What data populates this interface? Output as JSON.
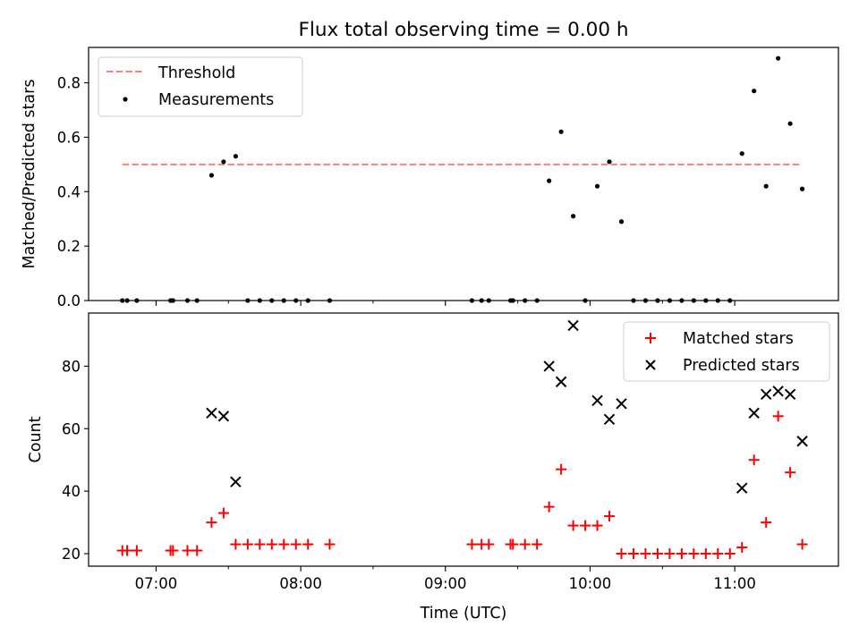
{
  "figure": {
    "title": "Flux total observing time = 0.00 h"
  },
  "chart_data": [
    {
      "type": "scatter",
      "title": "Flux total observing time = 0.00 h",
      "xlabel": "",
      "ylabel": "Matched/Predicted stars",
      "xlim": [
        "06:32",
        "11:43"
      ],
      "ylim": [
        0,
        0.93
      ],
      "yticks": [
        0.0,
        0.2,
        0.4,
        0.6,
        0.8
      ],
      "ytick_labels": [
        "0.0",
        "0.2",
        "0.4",
        "0.6",
        "0.8"
      ],
      "xticks": [
        "07:00",
        "08:00",
        "09:00",
        "10:00",
        "11:00"
      ],
      "minor_xticks": [
        "06:30",
        "07:30",
        "08:30",
        "09:30",
        "10:30"
      ],
      "legend": {
        "position": "upper-left",
        "entries": [
          "Threshold",
          "Measurements"
        ]
      },
      "grid": false,
      "threshold": {
        "name": "Threshold",
        "value": 0.5,
        "x_start": "06:46",
        "x_end": "11:27",
        "color": "#ff7f7f",
        "style": "dashed"
      },
      "series": [
        {
          "name": "Measurements",
          "color": "#000000",
          "marker": "dot",
          "points": [
            [
              "06:46",
              0.0
            ],
            [
              "06:48",
              0.0
            ],
            [
              "06:52",
              0.0
            ],
            [
              "07:06",
              0.0
            ],
            [
              "07:07",
              0.0
            ],
            [
              "07:13",
              0.0
            ],
            [
              "07:17",
              0.0
            ],
            [
              "07:23",
              0.46
            ],
            [
              "07:28",
              0.51
            ],
            [
              "07:33",
              0.53
            ],
            [
              "07:38",
              0.0
            ],
            [
              "07:43",
              0.0
            ],
            [
              "07:48",
              0.0
            ],
            [
              "07:53",
              0.0
            ],
            [
              "07:58",
              0.0
            ],
            [
              "08:03",
              0.0
            ],
            [
              "08:12",
              0.0
            ],
            [
              "09:11",
              0.0
            ],
            [
              "09:15",
              0.0
            ],
            [
              "09:18",
              0.0
            ],
            [
              "09:27",
              0.0
            ],
            [
              "09:28",
              0.0
            ],
            [
              "09:33",
              0.0
            ],
            [
              "09:38",
              0.0
            ],
            [
              "09:43",
              0.44
            ],
            [
              "09:48",
              0.62
            ],
            [
              "09:53",
              0.31
            ],
            [
              "09:58",
              0.0
            ],
            [
              "10:03",
              0.42
            ],
            [
              "10:08",
              0.51
            ],
            [
              "10:13",
              0.29
            ],
            [
              "10:18",
              0.0
            ],
            [
              "10:23",
              0.0
            ],
            [
              "10:28",
              0.0
            ],
            [
              "10:33",
              0.0
            ],
            [
              "10:38",
              0.0
            ],
            [
              "10:43",
              0.0
            ],
            [
              "10:48",
              0.0
            ],
            [
              "10:53",
              0.0
            ],
            [
              "10:58",
              0.0
            ],
            [
              "11:03",
              0.54
            ],
            [
              "11:08",
              0.77
            ],
            [
              "11:13",
              0.42
            ],
            [
              "11:18",
              0.89
            ],
            [
              "11:23",
              0.65
            ],
            [
              "11:28",
              0.41
            ]
          ]
        }
      ]
    },
    {
      "type": "scatter",
      "title": "",
      "xlabel": "Time (UTC)",
      "ylabel": "Count",
      "xlim": [
        "06:32",
        "11:43"
      ],
      "ylim": [
        16,
        97
      ],
      "yticks": [
        20,
        40,
        60,
        80
      ],
      "ytick_labels": [
        "20",
        "40",
        "60",
        "80"
      ],
      "xticks": [
        "07:00",
        "08:00",
        "09:00",
        "10:00",
        "11:00"
      ],
      "xtick_labels": [
        "07:00",
        "08:00",
        "09:00",
        "10:00",
        "11:00"
      ],
      "minor_xticks": [
        "06:30",
        "07:30",
        "08:30",
        "09:30",
        "10:30"
      ],
      "legend": {
        "position": "upper-right",
        "entries": [
          "Matched stars",
          "Predicted stars"
        ]
      },
      "grid": false,
      "series": [
        {
          "name": "Matched stars",
          "color": "#ff0000",
          "marker": "plus",
          "points": [
            [
              "06:46",
              21
            ],
            [
              "06:48",
              21
            ],
            [
              "06:52",
              21
            ],
            [
              "07:06",
              21
            ],
            [
              "07:07",
              21
            ],
            [
              "07:13",
              21
            ],
            [
              "07:17",
              21
            ],
            [
              "07:23",
              30
            ],
            [
              "07:28",
              33
            ],
            [
              "07:33",
              23
            ],
            [
              "07:38",
              23
            ],
            [
              "07:43",
              23
            ],
            [
              "07:48",
              23
            ],
            [
              "07:53",
              23
            ],
            [
              "07:58",
              23
            ],
            [
              "08:03",
              23
            ],
            [
              "08:12",
              23
            ],
            [
              "09:11",
              23
            ],
            [
              "09:15",
              23
            ],
            [
              "09:18",
              23
            ],
            [
              "09:27",
              23
            ],
            [
              "09:28",
              23
            ],
            [
              "09:33",
              23
            ],
            [
              "09:38",
              23
            ],
            [
              "09:43",
              35
            ],
            [
              "09:48",
              47
            ],
            [
              "09:53",
              29
            ],
            [
              "09:58",
              29
            ],
            [
              "10:03",
              29
            ],
            [
              "10:08",
              32
            ],
            [
              "10:13",
              20
            ],
            [
              "10:18",
              20
            ],
            [
              "10:23",
              20
            ],
            [
              "10:28",
              20
            ],
            [
              "10:33",
              20
            ],
            [
              "10:38",
              20
            ],
            [
              "10:43",
              20
            ],
            [
              "10:48",
              20
            ],
            [
              "10:53",
              20
            ],
            [
              "10:58",
              20
            ],
            [
              "11:03",
              22
            ],
            [
              "11:08",
              50
            ],
            [
              "11:13",
              30
            ],
            [
              "11:18",
              64
            ],
            [
              "11:23",
              46
            ],
            [
              "11:28",
              23
            ]
          ]
        },
        {
          "name": "Predicted stars",
          "color": "#000000",
          "marker": "x",
          "points": [
            [
              "07:23",
              65
            ],
            [
              "07:28",
              64
            ],
            [
              "07:33",
              43
            ],
            [
              "09:43",
              80
            ],
            [
              "09:48",
              75
            ],
            [
              "09:53",
              93
            ],
            [
              "10:03",
              69
            ],
            [
              "10:08",
              63
            ],
            [
              "10:13",
              68
            ],
            [
              "11:03",
              41
            ],
            [
              "11:08",
              65
            ],
            [
              "11:13",
              71
            ],
            [
              "11:18",
              72
            ],
            [
              "11:23",
              71
            ],
            [
              "11:28",
              56
            ]
          ]
        }
      ]
    }
  ]
}
